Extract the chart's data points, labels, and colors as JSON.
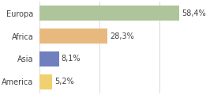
{
  "categories": [
    "Europa",
    "Africa",
    "Asia",
    "America"
  ],
  "values": [
    58.4,
    28.3,
    8.1,
    5.2
  ],
  "labels": [
    "58,4%",
    "28,3%",
    "8,1%",
    "5,2%"
  ],
  "bar_colors": [
    "#aec49a",
    "#e8b97e",
    "#7080be",
    "#f0d070"
  ],
  "background_color": "#ffffff",
  "xlim": [
    0,
    75
  ],
  "label_fontsize": 7.0,
  "tick_fontsize": 7.0,
  "bar_height": 0.65
}
